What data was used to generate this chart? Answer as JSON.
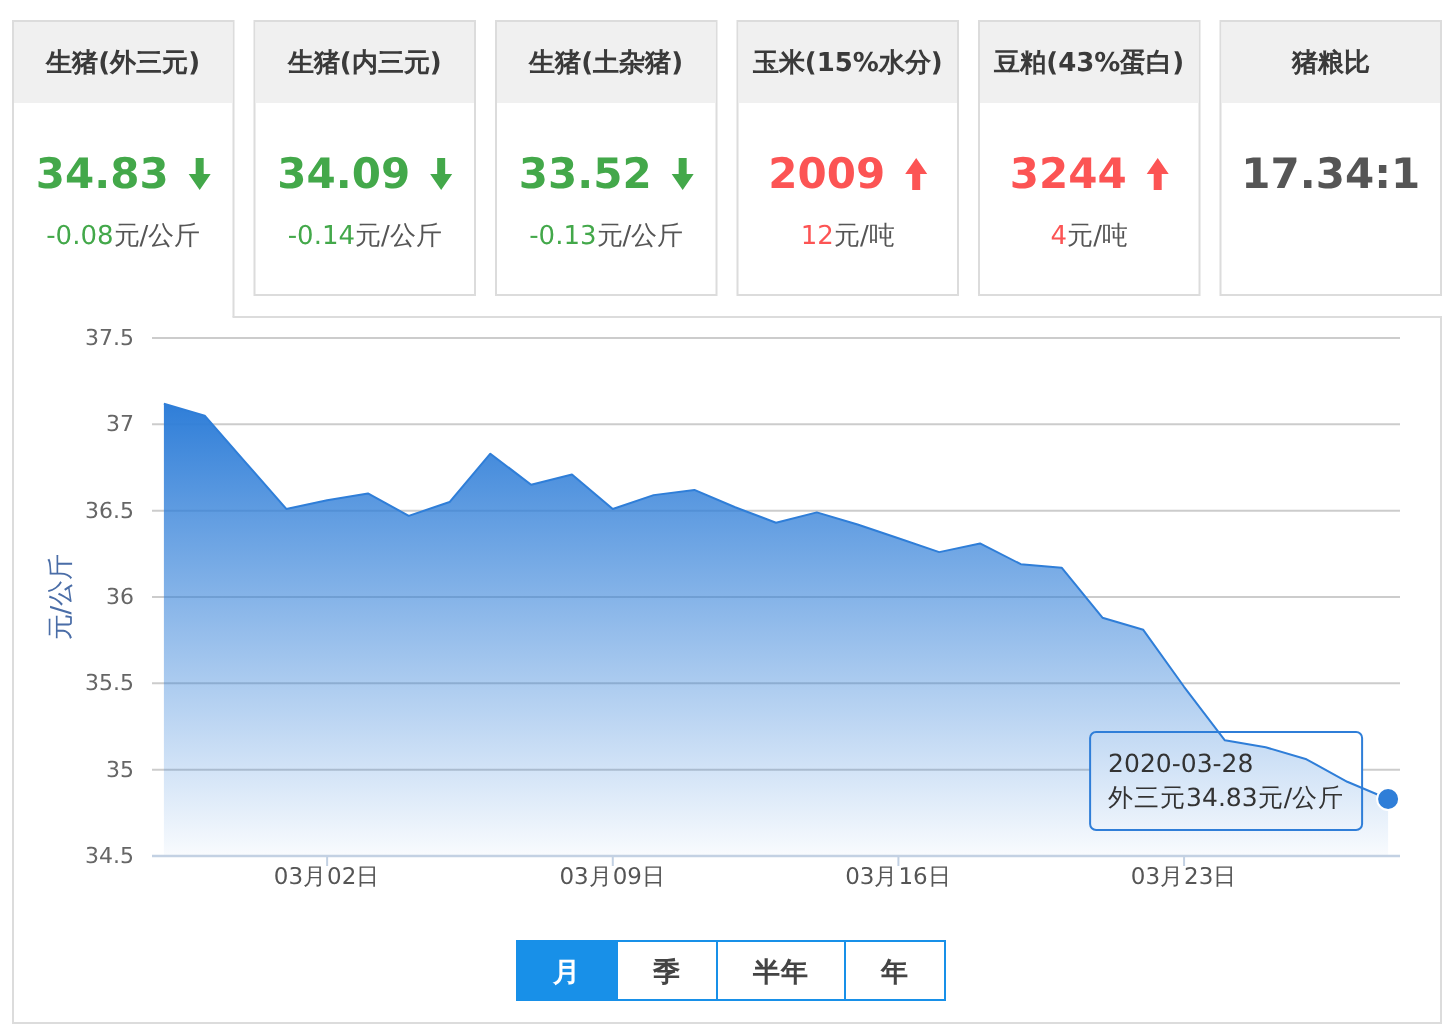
{
  "chart_data": [
    {
      "type": "other",
      "categories": [
        "生猪(外三元)",
        "生猪(内三元)",
        "生猪(土杂猪)",
        "玉米(15%水分)",
        "豆粕(43%蛋白)",
        "猪粮比"
      ],
      "series": [
        {
          "values": [
            34.83,
            34.09,
            33.52,
            2009,
            3244,
            17.34
          ],
          "value_labels": [
            "34.83",
            "34.09",
            "33.52",
            "2009",
            "3244",
            "17.34:1"
          ]
        },
        {
          "values": [
            -0.08,
            -0.14,
            -0.13,
            12,
            4,
            null
          ],
          "value_labels": [
            "-0.08元/公斤",
            "-0.14元/公斤",
            "-0.13元/公斤",
            "12元/吨",
            "4元/吨",
            null
          ]
        }
      ]
    },
    {
      "type": "area",
      "ylabel": "元/公斤",
      "x": [
        "2020-02-27",
        "2020-02-28",
        "2020-02-29",
        "2020-03-01",
        "2020-03-02",
        "2020-03-03",
        "2020-03-04",
        "2020-03-05",
        "2020-03-06",
        "2020-03-07",
        "2020-03-08",
        "2020-03-09",
        "2020-03-10",
        "2020-03-11",
        "2020-03-12",
        "2020-03-13",
        "2020-03-14",
        "2020-03-15",
        "2020-03-16",
        "2020-03-17",
        "2020-03-18",
        "2020-03-19",
        "2020-03-20",
        "2020-03-21",
        "2020-03-22",
        "2020-03-23",
        "2020-03-24",
        "2020-03-25",
        "2020-03-26",
        "2020-03-27",
        "2020-03-28"
      ],
      "values": [
        37.12,
        37.05,
        36.78,
        36.51,
        36.56,
        36.6,
        36.47,
        36.55,
        36.83,
        36.65,
        36.71,
        36.51,
        36.59,
        36.62,
        36.52,
        36.43,
        36.49,
        36.42,
        36.34,
        36.26,
        36.31,
        36.19,
        36.17,
        35.88,
        35.81,
        35.48,
        35.17,
        35.13,
        35.06,
        34.93,
        34.83
      ],
      "color": "#2f7ed8",
      "xlim": [
        "2020-02-26T17:00",
        "2020-03-28T07:00"
      ],
      "xticks": [
        {
          "value": "2020-03-02",
          "label": "03月02日"
        },
        {
          "value": "2020-03-09",
          "label": "03月09日"
        },
        {
          "value": "2020-03-16",
          "label": "03月16日"
        },
        {
          "value": "2020-03-23",
          "label": "03月23日"
        }
      ],
      "ylim": [
        34.5,
        37.5
      ],
      "yticks": [
        34.5,
        35,
        35.5,
        36,
        36.5,
        37,
        37.5
      ],
      "grid": "y",
      "annotations": [
        {
          "text": "2020-03-28\n外三元34.83元/公斤",
          "x": "2020-03-28",
          "y": 34.83
        },
        "月",
        "季",
        "半年",
        "年"
      ]
    }
  ]
}
